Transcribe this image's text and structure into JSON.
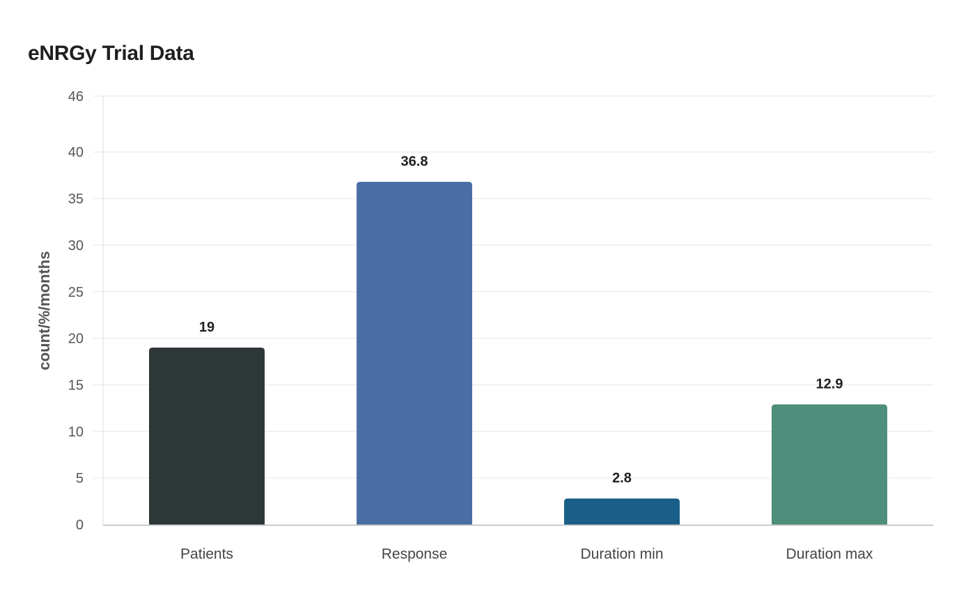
{
  "chart_data": {
    "type": "bar",
    "title": "eNRGy Trial Data",
    "xlabel": "",
    "ylabel": "count/%/months",
    "categories": [
      "Patients",
      "Response",
      "Duration min",
      "Duration max"
    ],
    "values": [
      19,
      36.8,
      2.8,
      12.9
    ],
    "value_labels": [
      "19",
      "36.8",
      "2.8",
      "12.9"
    ],
    "colors": [
      "#2e3737",
      "#4a6fa5",
      "#1a5f87",
      "#4e8e7b"
    ],
    "ylim": [
      0,
      46
    ],
    "yticks": [
      0,
      5,
      10,
      15,
      20,
      25,
      30,
      35,
      40,
      46
    ],
    "grid": true,
    "legend": "none"
  }
}
